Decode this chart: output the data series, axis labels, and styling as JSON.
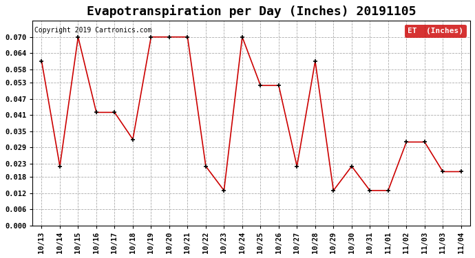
{
  "title": "Evapotranspiration per Day (Inches) 20191105",
  "copyright": "Copyright 2019 Cartronics.com",
  "legend_label": "ET  (Inches)",
  "legend_bg": "#cc0000",
  "legend_text_color": "#ffffff",
  "line_color": "#cc0000",
  "marker_color": "#000000",
  "background_color": "#ffffff",
  "grid_color": "#aaaaaa",
  "dates": [
    "10/13",
    "10/14",
    "10/15",
    "10/16",
    "10/17",
    "10/18",
    "10/19",
    "10/20",
    "10/21",
    "10/22",
    "10/23",
    "10/24",
    "10/25",
    "10/26",
    "10/27",
    "10/28",
    "10/29",
    "10/30",
    "10/31",
    "11/01",
    "11/02",
    "11/03",
    "11/03",
    "11/04"
  ],
  "values": [
    0.061,
    0.022,
    0.07,
    0.042,
    0.042,
    0.032,
    0.07,
    0.07,
    0.07,
    0.022,
    0.013,
    0.07,
    0.052,
    0.052,
    0.022,
    0.061,
    0.013,
    0.022,
    0.013,
    0.013,
    0.031,
    0.031,
    0.02,
    0.02
  ],
  "ylim": [
    0.0,
    0.076
  ],
  "yticks": [
    0.0,
    0.006,
    0.012,
    0.018,
    0.023,
    0.029,
    0.035,
    0.041,
    0.047,
    0.053,
    0.058,
    0.064,
    0.07
  ],
  "title_fontsize": 13,
  "copyright_fontsize": 7,
  "tick_fontsize": 7.5
}
